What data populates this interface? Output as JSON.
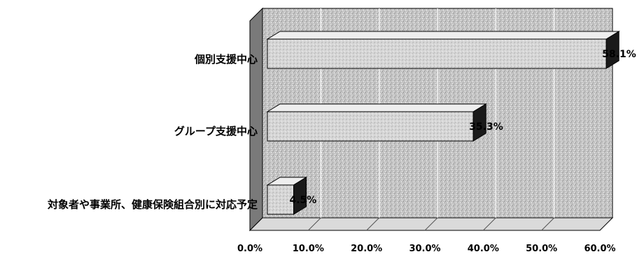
{
  "chart_data": {
    "type": "bar",
    "orientation": "horizontal",
    "style": "3d",
    "categories": [
      "個別支援中心",
      "グループ支援中心",
      "対象者や事業所、健康保険組合別に対応予定"
    ],
    "values": [
      58.1,
      35.3,
      4.5
    ],
    "data_labels": [
      "58.1%",
      "35.3%",
      "4.5%"
    ],
    "x_ticks": [
      "0.0%",
      "10.0%",
      "20.0%",
      "30.0%",
      "40.0%",
      "50.0%",
      "60.0%"
    ],
    "xlim": [
      0,
      60
    ],
    "unit": "%",
    "grid": true,
    "colors": {
      "bar_front": "#d4d4d4",
      "bar_top": "#eeeeee",
      "bar_side": "#1a1a1a",
      "wall": "#bdbdbd",
      "side_wall": "#7a7a7a",
      "floor": "#dadada",
      "grid": "#ffffff"
    }
  }
}
